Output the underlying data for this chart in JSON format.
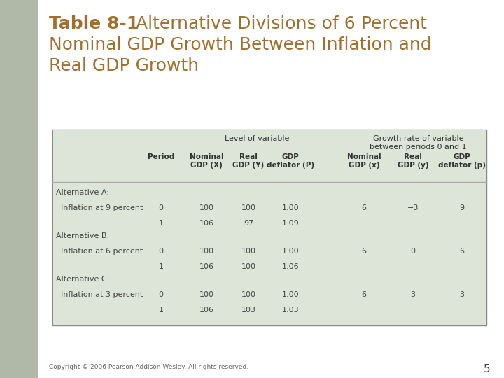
{
  "title_bold": "Table 8-1",
  "title_rest": "  Alternative Divisions of 6 Percent",
  "title_line2": "Nominal GDP Growth Between Inflation and",
  "title_line3": "Real GDP Growth",
  "title_color": "#a07030",
  "bg_color": "#ffffff",
  "left_strip_color": "#c8c8b8",
  "table_bg": "#dde5d8",
  "table_border_color": "#888888",
  "header_span1": "Level of variable",
  "header_span2": "Growth rate of variable\nbetween periods 0 and 1",
  "col_headers": [
    "",
    "Period",
    "Nominal\nGDP (X)",
    "Real\nGDP (Y)",
    "GDP\ndeflator (P)",
    "Nominal\nGDP (x)",
    "Real\nGDP (y)",
    "GDP\ndeflator (p)"
  ],
  "rows": [
    [
      "Alternative A:",
      "",
      "",
      "",
      "",
      "",
      "",
      ""
    ],
    [
      "  Inflation at 9 percent",
      "0",
      "100",
      "100",
      "1.00",
      "6",
      "−3",
      "9"
    ],
    [
      "",
      "1",
      "106",
      "97",
      "1.09",
      "",
      "",
      ""
    ],
    [
      "Alternative B:",
      "",
      "",
      "",
      "",
      "",
      "",
      ""
    ],
    [
      "  Inflation at 6 percent",
      "0",
      "100",
      "100",
      "1.00",
      "6",
      "0",
      "6"
    ],
    [
      "",
      "1",
      "106",
      "100",
      "1.06",
      "",
      "",
      ""
    ],
    [
      "Alternative C:",
      "",
      "",
      "",
      "",
      "",
      "",
      ""
    ],
    [
      "  Inflation at 3 percent",
      "0",
      "100",
      "100",
      "1.00",
      "6",
      "3",
      "3"
    ],
    [
      "",
      "1",
      "106",
      "103",
      "1.03",
      "",
      "",
      ""
    ]
  ],
  "footer": "Copyright © 2006 Pearson Addison-Wesley. All rights reserved.",
  "footer_color": "#666666",
  "page_num": "5",
  "text_color": "#444444",
  "header_text_color": "#333333",
  "data_divider_color": "#aaaaaa"
}
